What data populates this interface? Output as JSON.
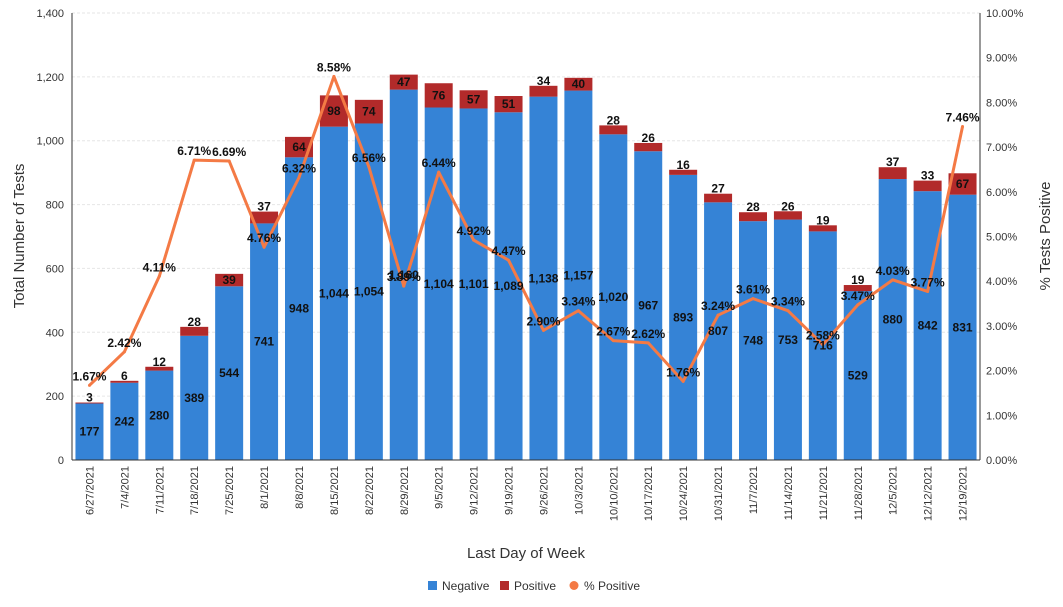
{
  "chart_data": {
    "type": "bar",
    "stacked": true,
    "categories": [
      "6/27/2021",
      "7/4/2021",
      "7/11/2021",
      "7/18/2021",
      "7/25/2021",
      "8/1/2021",
      "8/8/2021",
      "8/15/2021",
      "8/22/2021",
      "8/29/2021",
      "9/5/2021",
      "9/12/2021",
      "9/19/2021",
      "9/26/2021",
      "10/3/2021",
      "10/10/2021",
      "10/17/2021",
      "10/24/2021",
      "10/31/2021",
      "11/7/2021",
      "11/14/2021",
      "11/21/2021",
      "11/28/2021",
      "12/5/2021",
      "12/12/2021",
      "12/19/2021"
    ],
    "series": [
      {
        "name": "Negative",
        "type": "bar",
        "color": "#3583d6",
        "values": [
          177,
          242,
          280,
          389,
          544,
          741,
          948,
          1044,
          1054,
          1160,
          1104,
          1101,
          1089,
          1138,
          1157,
          1020,
          967,
          893,
          807,
          748,
          753,
          716,
          529,
          880,
          842,
          831
        ],
        "labels": [
          "177",
          "242",
          "280",
          "389",
          "544",
          "741",
          "948",
          "1,044",
          "1,054",
          "1,160",
          "1,104",
          "1,101",
          "1,089",
          "1,138",
          "1,157",
          "1,020",
          "967",
          "893",
          "807",
          "748",
          "753",
          "716",
          "529",
          "880",
          "842",
          "831"
        ]
      },
      {
        "name": "Positive",
        "type": "bar",
        "color": "#b22a2a",
        "values": [
          3,
          6,
          12,
          28,
          39,
          37,
          64,
          98,
          74,
          47,
          76,
          57,
          51,
          34,
          40,
          28,
          26,
          16,
          27,
          28,
          26,
          19,
          19,
          37,
          33,
          67
        ],
        "labels": [
          "3",
          "6",
          "12",
          "28",
          "39",
          "37",
          "64",
          "98",
          "74",
          "47",
          "76",
          "57",
          "51",
          "34",
          "40",
          "28",
          "26",
          "16",
          "27",
          "28",
          "26",
          "19",
          "19",
          "37",
          "33",
          "67"
        ]
      },
      {
        "name": "% Positive",
        "type": "line",
        "axis": "right",
        "color": "#f47a45",
        "values": [
          1.67,
          2.42,
          4.11,
          6.71,
          6.69,
          4.76,
          6.32,
          8.58,
          6.56,
          3.89,
          6.44,
          4.92,
          4.47,
          2.9,
          3.34,
          2.67,
          2.62,
          1.76,
          3.24,
          3.61,
          3.34,
          2.58,
          3.47,
          4.03,
          3.77,
          7.46
        ],
        "labels": [
          "1.67%",
          "2.42%",
          "4.11%",
          "6.71%",
          "6.69%",
          "4.76%",
          "6.32%",
          "8.58%",
          "6.56%",
          "3.89%",
          "6.44%",
          "4.92%",
          "4.47%",
          "2.90%",
          "3.34%",
          "2.67%",
          "2.62%",
          "1.76%",
          "3.24%",
          "3.61%",
          "3.34%",
          "2.58%",
          "3.47%",
          "4.03%",
          "3.77%",
          "7.46%"
        ]
      }
    ],
    "xlabel": "Last Day of Week",
    "ylabel": "Total Number of Tests",
    "ylabel_right": "% Tests Positive",
    "ylim": [
      0,
      1400
    ],
    "yticks": [
      0,
      200,
      400,
      600,
      800,
      1000,
      1200,
      1400
    ],
    "ytick_labels": [
      "0",
      "200",
      "400",
      "600",
      "800",
      "1,000",
      "1,200",
      "1,400"
    ],
    "ylim_right": [
      0,
      10
    ],
    "yticks_right": [
      0,
      1,
      2,
      3,
      4,
      5,
      6,
      7,
      8,
      9,
      10
    ],
    "ytick_labels_right": [
      "0.00%",
      "1.00%",
      "2.00%",
      "3.00%",
      "4.00%",
      "5.00%",
      "6.00%",
      "7.00%",
      "8.00%",
      "9.00%",
      "10.00%"
    ],
    "grid": true,
    "legend": "bottom-center",
    "legend_items": [
      "Negative",
      "Positive",
      "% Positive"
    ]
  }
}
